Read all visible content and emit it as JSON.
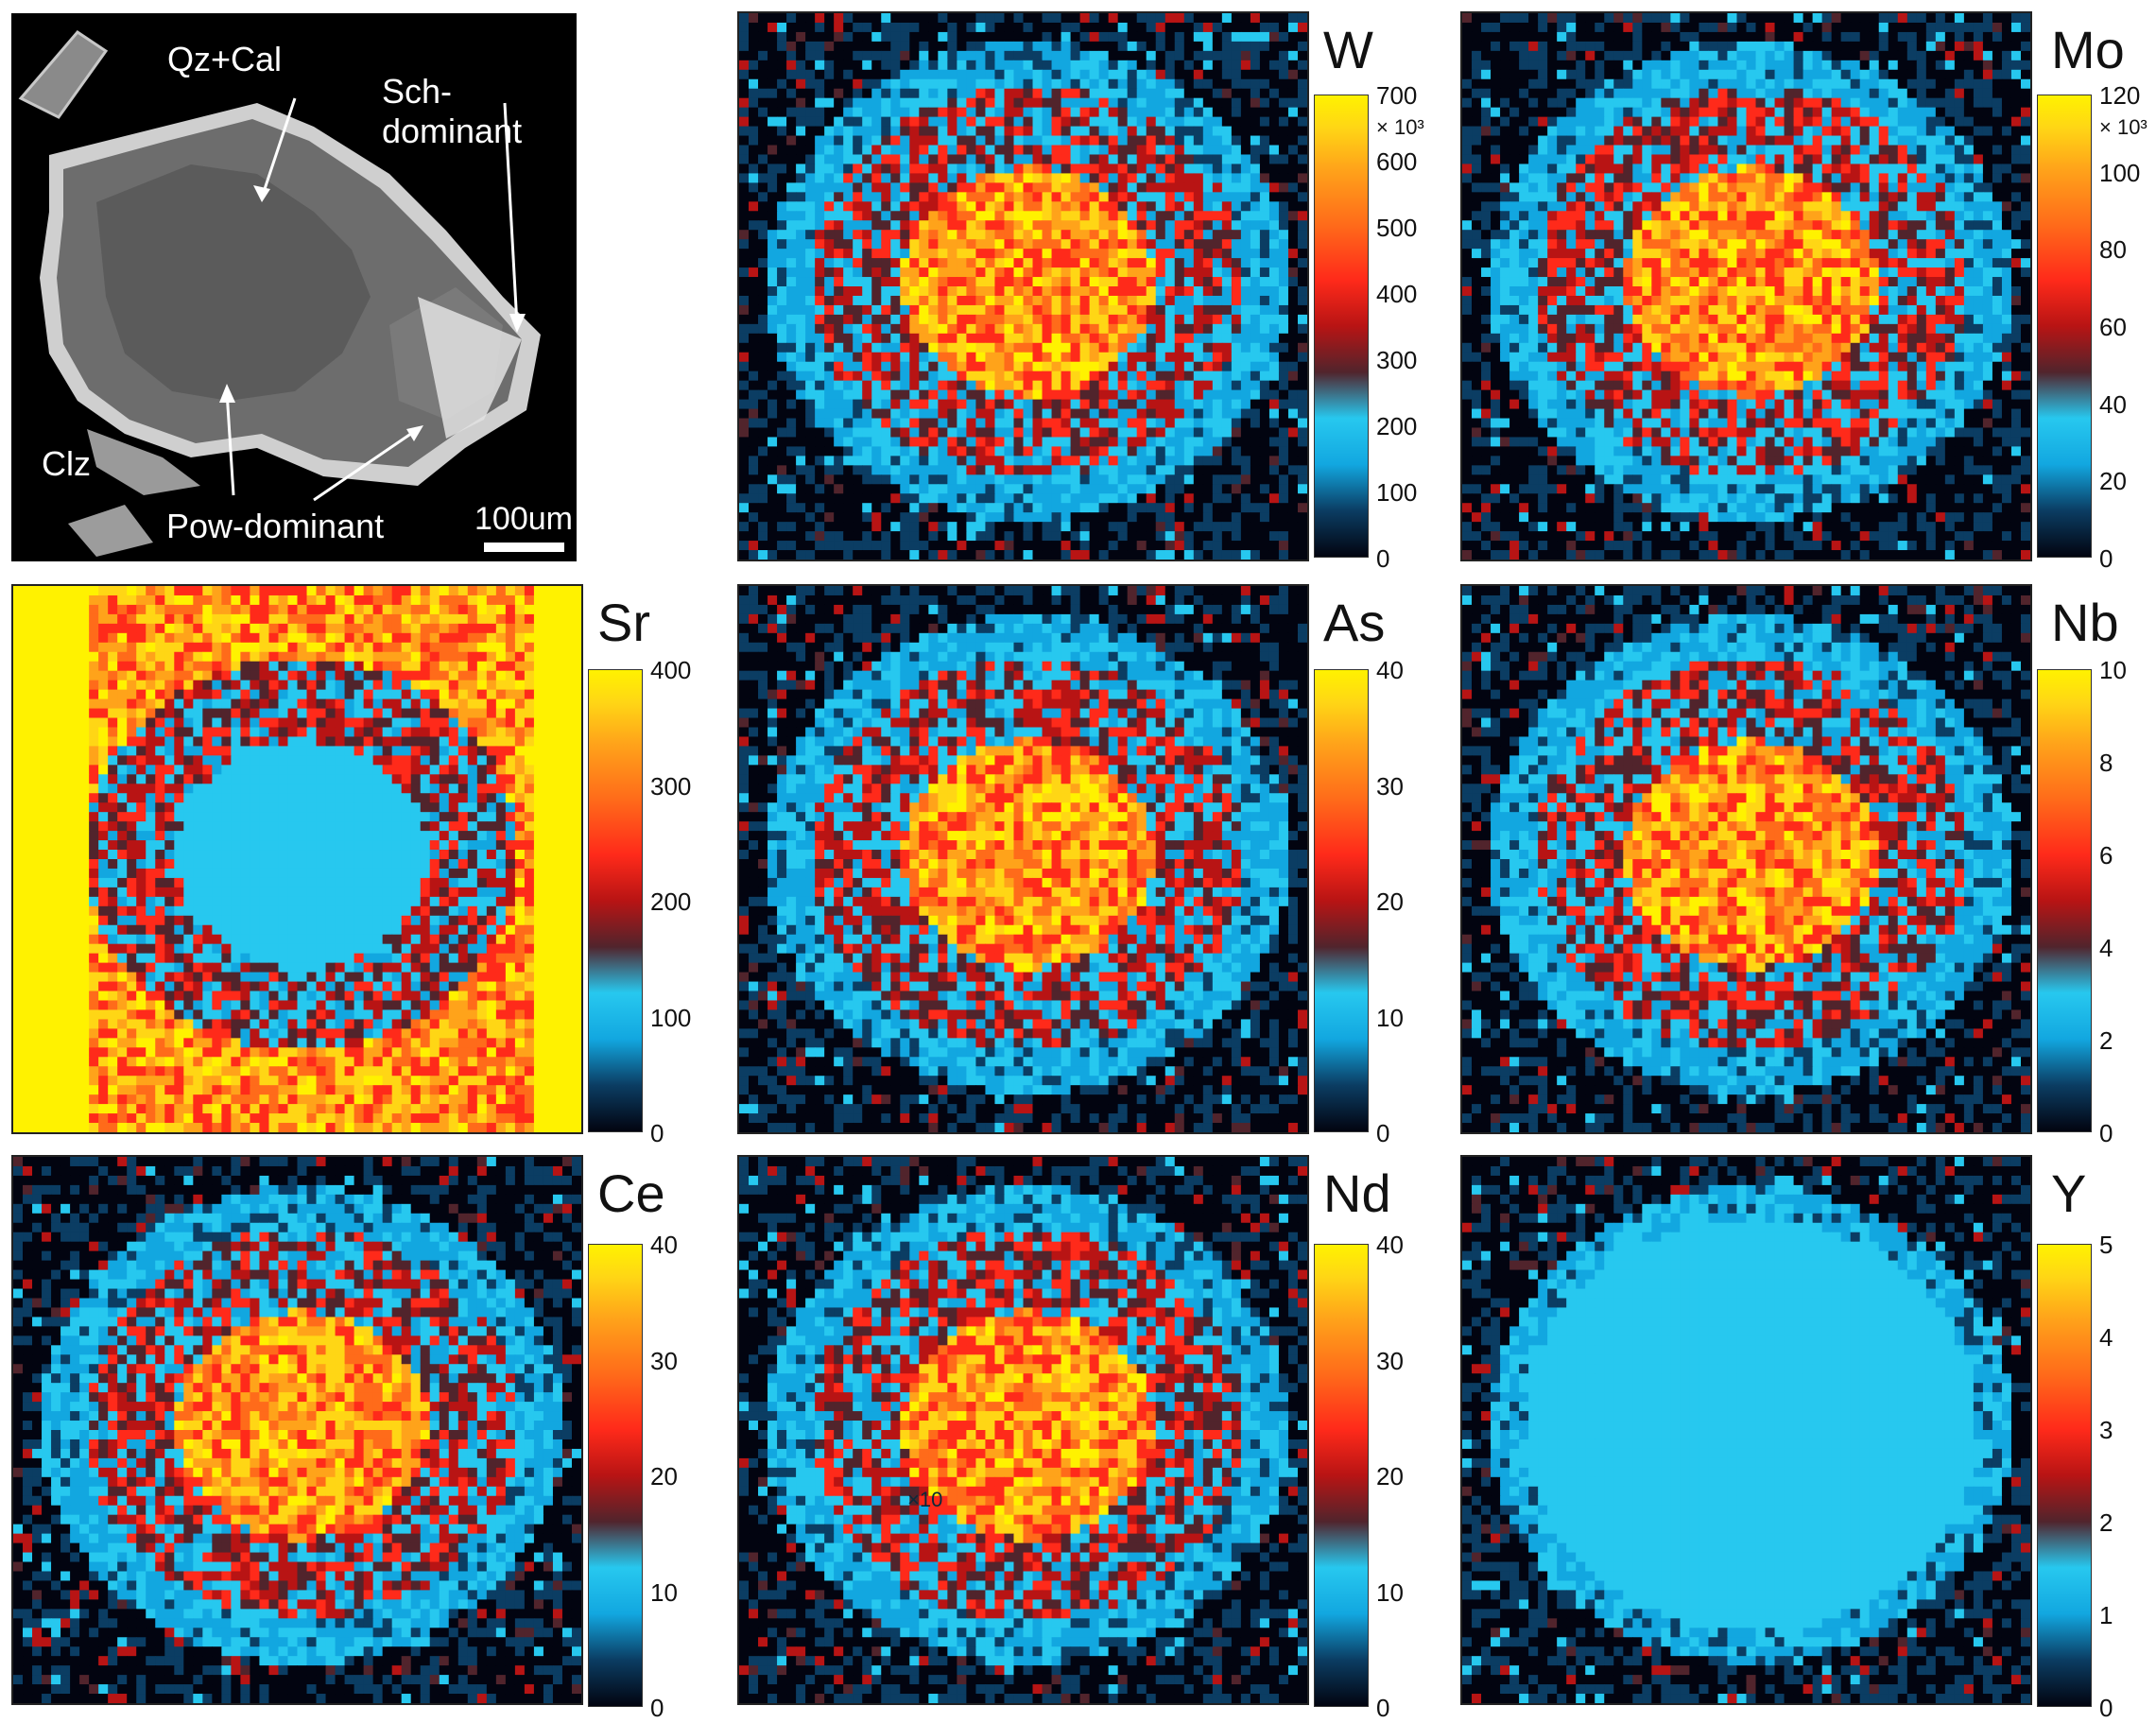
{
  "bse_panel": {
    "labels": {
      "qz_cal": "Qz+Cal",
      "sch": "Sch-dominant",
      "clz": "Clz",
      "pow": "Pow-dominant",
      "scale": "100um"
    }
  },
  "maps": [
    {
      "element": "W",
      "ticks": [
        "700",
        "600",
        "500",
        "400",
        "300",
        "200",
        "100",
        "0"
      ],
      "multiplier": "× 10³"
    },
    {
      "element": "Mo",
      "ticks": [
        "120",
        "100",
        "80",
        "60",
        "40",
        "20",
        "0"
      ],
      "multiplier": "× 10³"
    },
    {
      "element": "Sr",
      "ticks": [
        "400",
        "300",
        "200",
        "100",
        "0"
      ],
      "multiplier": ""
    },
    {
      "element": "As",
      "ticks": [
        "40",
        "30",
        "20",
        "10",
        "0"
      ],
      "multiplier": ""
    },
    {
      "element": "Nb",
      "ticks": [
        "10",
        "8",
        "6",
        "4",
        "2",
        "0"
      ],
      "multiplier": ""
    },
    {
      "element": "Ce",
      "ticks": [
        "40",
        "30",
        "20",
        "10",
        "0"
      ],
      "multiplier": ""
    },
    {
      "element": "Nd",
      "ticks": [
        "40",
        "30",
        "20",
        "10",
        "0"
      ],
      "multiplier": ""
    },
    {
      "element": "Y",
      "ticks": [
        "5",
        "4",
        "3",
        "2",
        "1",
        "0"
      ],
      "multiplier": ""
    }
  ],
  "colorbar_colors": [
    "#020410",
    "#0b3d63",
    "#12a7e0",
    "#27c8ef",
    "#51242c",
    "#b81414",
    "#ff2a1a",
    "#ff6b1a",
    "#ffa31a",
    "#ffd615",
    "#fff200"
  ],
  "nd_overlay_text": "×10"
}
